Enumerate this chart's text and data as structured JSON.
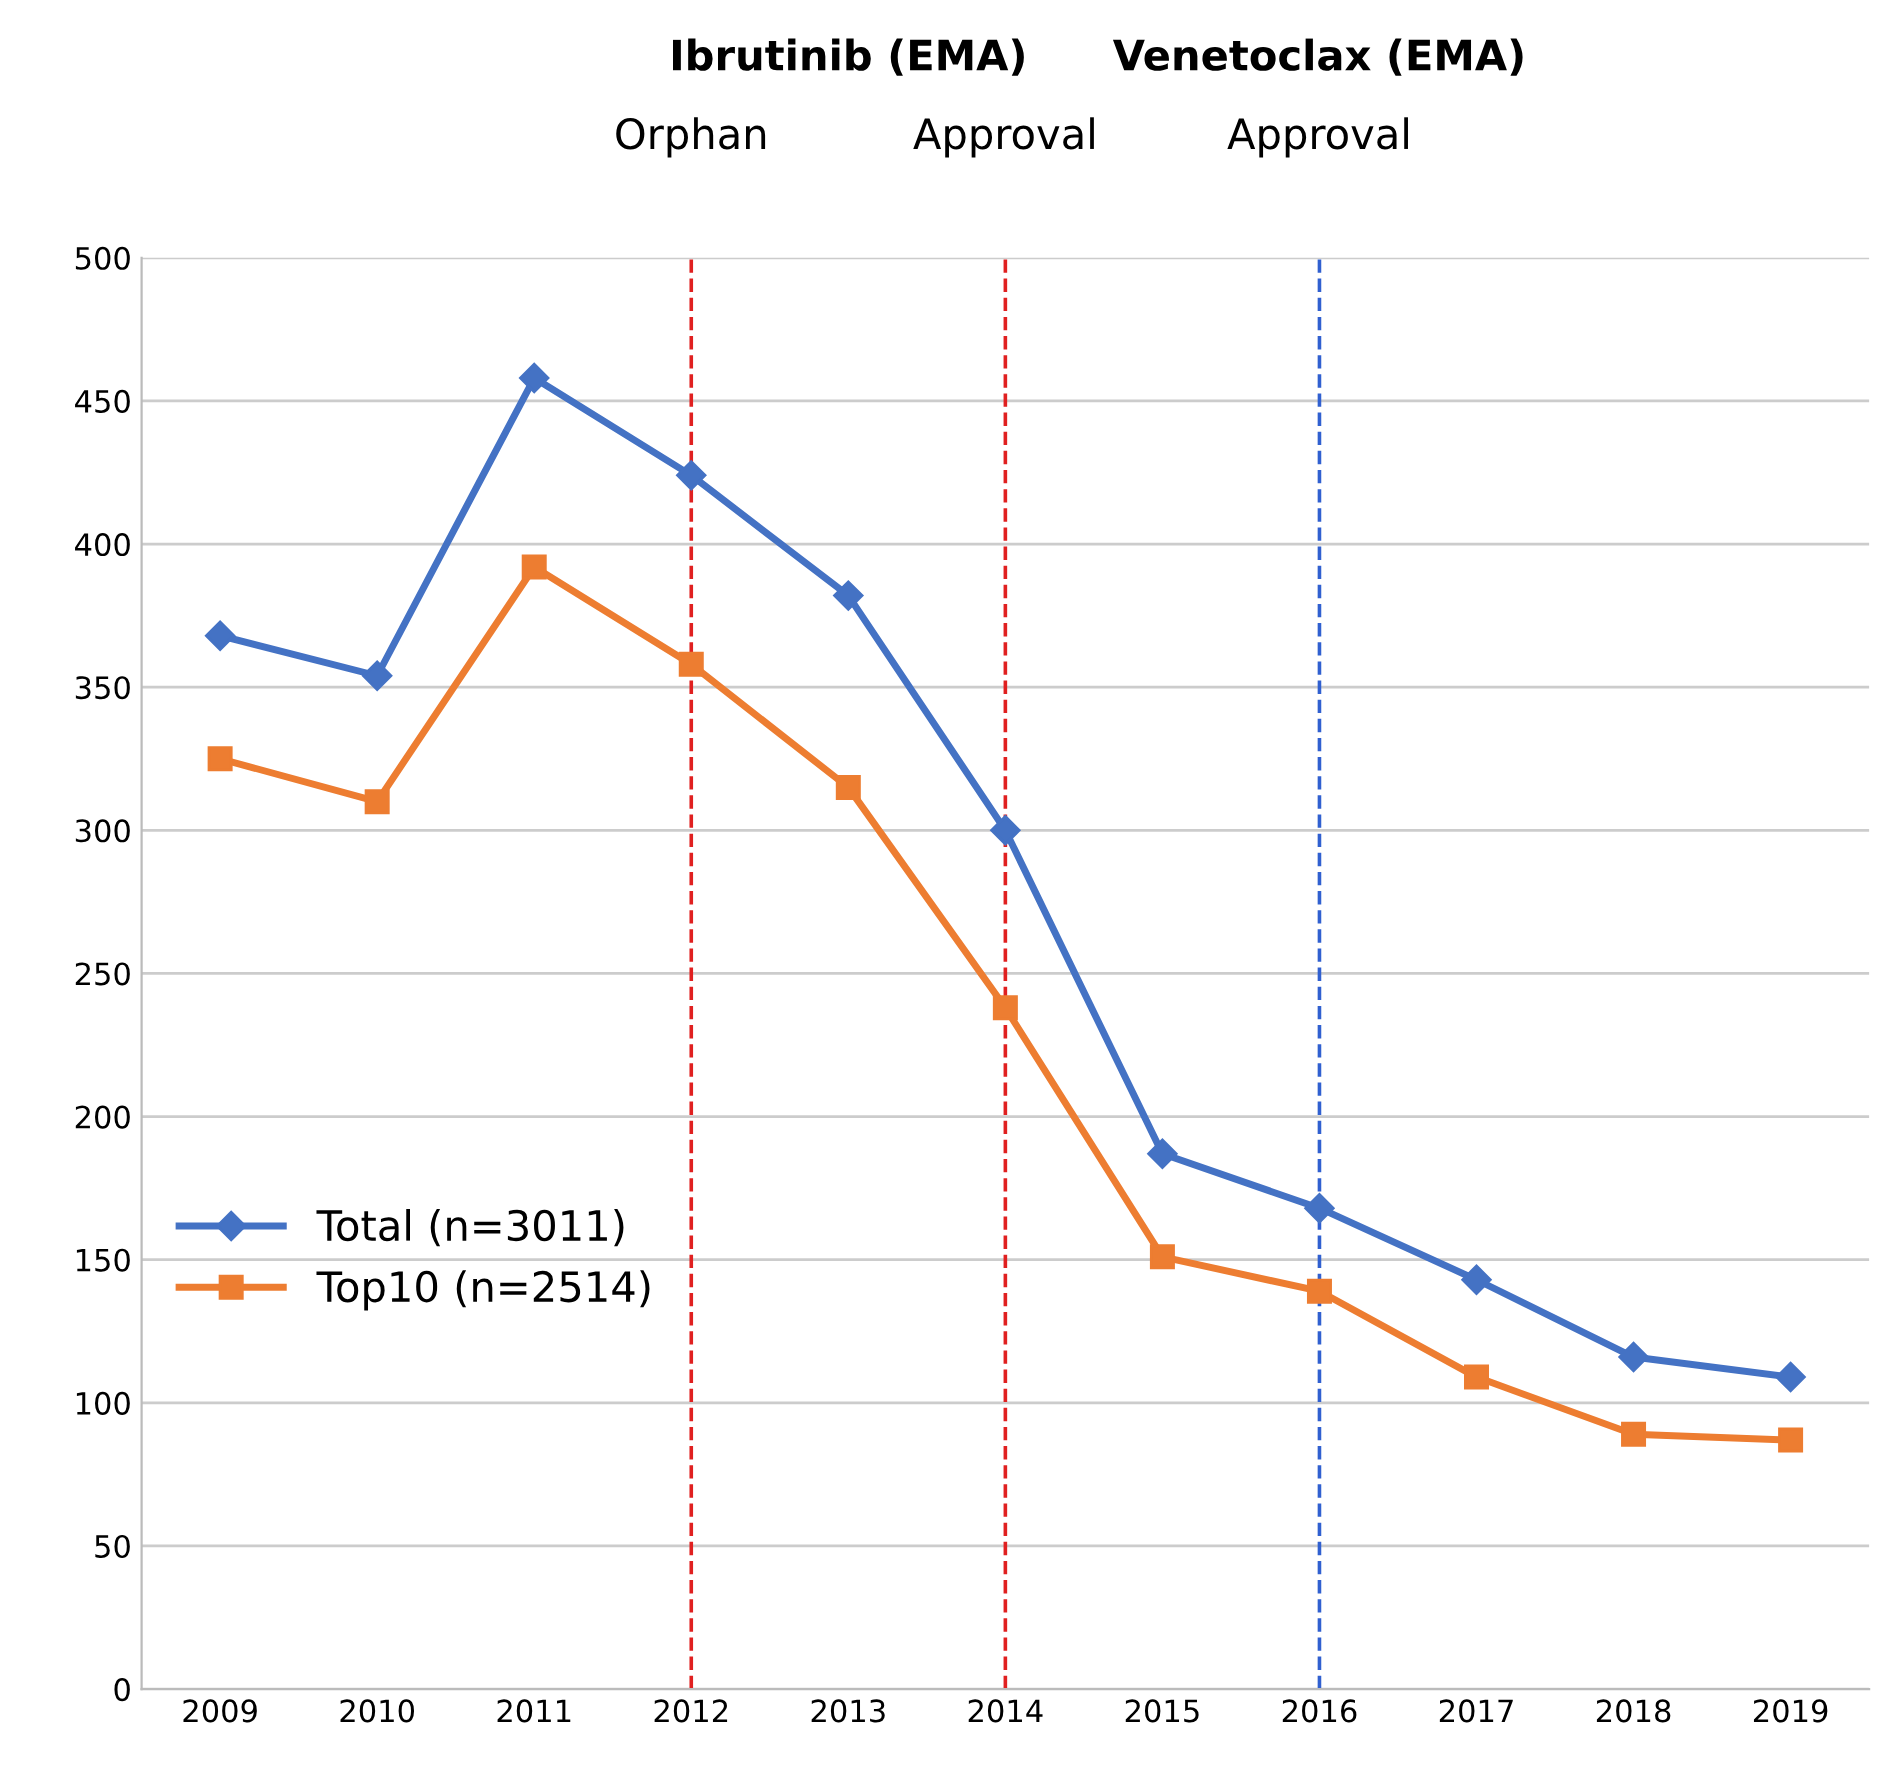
{
  "chart_data": {
    "type": "line",
    "categories": [
      "2009",
      "2010",
      "2011",
      "2012",
      "2013",
      "2014",
      "2015",
      "2016",
      "2017",
      "2018",
      "2019"
    ],
    "series": [
      {
        "name": "Total (n=3011)",
        "color": "#4472c4",
        "marker": "diamond",
        "values": [
          368,
          354,
          458,
          424,
          382,
          300,
          187,
          168,
          143,
          116,
          109
        ]
      },
      {
        "name": "Top10 (n=2514)",
        "color": "#ed7d31",
        "marker": "square",
        "values": [
          325,
          310,
          392,
          358,
          315,
          238,
          151,
          139,
          109,
          89,
          87
        ]
      }
    ],
    "ylim": [
      0,
      500
    ],
    "yticks": [
      0,
      50,
      100,
      150,
      200,
      250,
      300,
      350,
      400,
      450,
      500
    ],
    "grid": "y",
    "legend": "left",
    "ref_lines": [
      {
        "axis": "x",
        "value": "2012",
        "label": "Orphan",
        "color": "#e02020",
        "line_style": "dashed"
      },
      {
        "axis": "x",
        "value": "2014",
        "label": "Approval",
        "color": "#e02020",
        "line_style": "dashed"
      },
      {
        "axis": "x",
        "value": "2016",
        "label": "Approval",
        "color": "#3060d0",
        "line_style": "dashed"
      }
    ],
    "annotations": [
      "Ibrutinib (EMA)",
      "Venetoclax (EMA)"
    ]
  }
}
